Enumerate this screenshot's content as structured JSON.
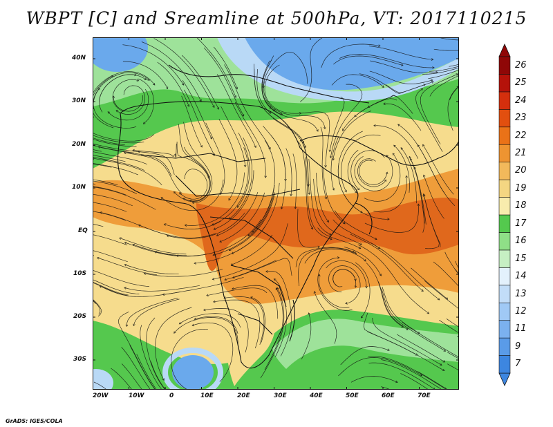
{
  "title": "WBPT [C] and Sreamline at 500hPa, VT: 2017110215",
  "credit": "GrADS: IGES/COLA",
  "map": {
    "lat_labels": [
      "40N",
      "30N",
      "20N",
      "10N",
      "EQ",
      "10S",
      "20S",
      "30S"
    ],
    "lon_labels": [
      "20W",
      "10W",
      "0",
      "10E",
      "20E",
      "30E",
      "40E",
      "50E",
      "60E",
      "70E"
    ]
  },
  "colorbar": {
    "levels": [
      "7",
      "9",
      "11",
      "12",
      "13",
      "14",
      "15",
      "16",
      "17",
      "18",
      "19",
      "20",
      "21",
      "22",
      "23",
      "24",
      "25",
      "26"
    ],
    "colors": [
      "#3d86e0",
      "#5a9be8",
      "#7bb1ef",
      "#a0c9f5",
      "#c2ddf8",
      "#e3f1fc",
      "#c6efc3",
      "#8fdf87",
      "#54c94e",
      "#f8ecad",
      "#f4d682",
      "#f2b95b",
      "#ee9431",
      "#ea7218",
      "#e24f0f",
      "#d42f0d",
      "#b5120a",
      "#8f0707"
    ]
  },
  "colors": {
    "cold": "#6aa9ec",
    "light_blue": "#b9d9f6",
    "green": "#55c84e",
    "light_green": "#9ee29a",
    "yellow": "#f6dc8d",
    "orange": "#ef9d3a",
    "dark_orange": "#e0681c"
  }
}
